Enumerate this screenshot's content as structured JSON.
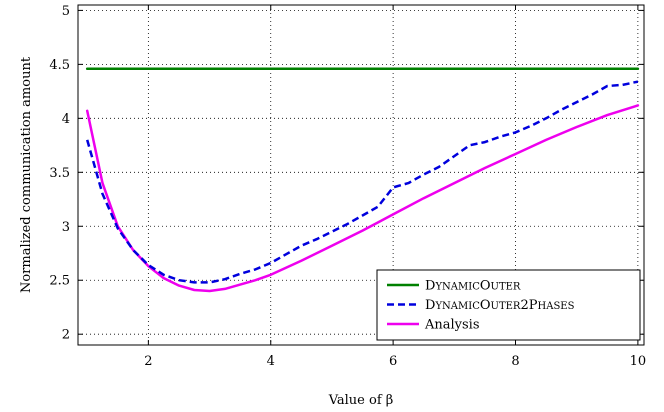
{
  "chart_data": {
    "type": "line",
    "xlabel": "Value of β",
    "ylabel": "Normalized communication amount",
    "xlim": [
      0.85,
      10.1
    ],
    "ylim": [
      1.9,
      5.05
    ],
    "xticks": [
      2,
      4,
      6,
      8,
      10
    ],
    "yticks": [
      2,
      2.5,
      3,
      3.5,
      4,
      4.5,
      5
    ],
    "xtick_labels": [
      "2",
      "4",
      "6",
      "8",
      "10"
    ],
    "ytick_labels": [
      "2",
      "2.5",
      "3",
      "3.5",
      "4",
      "4.5",
      "5"
    ],
    "grid": true,
    "legend_position": "bottom-right",
    "series": [
      {
        "name": "DynamicOuter",
        "color": "#008000",
        "style": "solid",
        "x": [
          1,
          10
        ],
        "y": [
          4.46,
          4.46
        ]
      },
      {
        "name": "DynamicOuter2Phases",
        "color": "#0000dd",
        "style": "dashed",
        "x": [
          1,
          1.25,
          1.5,
          1.75,
          2,
          2.25,
          2.5,
          2.75,
          3,
          3.25,
          3.5,
          3.75,
          4,
          4.25,
          4.5,
          4.75,
          5,
          5.25,
          5.5,
          5.75,
          6,
          6.25,
          6.5,
          6.75,
          7,
          7.25,
          7.5,
          7.75,
          8,
          8.25,
          8.5,
          8.75,
          9,
          9.25,
          9.5,
          9.75,
          10
        ],
        "y": [
          3.8,
          3.3,
          2.98,
          2.78,
          2.64,
          2.55,
          2.5,
          2.48,
          2.48,
          2.51,
          2.56,
          2.6,
          2.66,
          2.74,
          2.82,
          2.88,
          2.95,
          3.02,
          3.1,
          3.18,
          3.36,
          3.4,
          3.48,
          3.55,
          3.65,
          3.75,
          3.78,
          3.83,
          3.87,
          3.93,
          4.0,
          4.08,
          4.15,
          4.22,
          4.3,
          4.31,
          4.34
        ]
      },
      {
        "name": "Analysis",
        "color": "#ee00ee",
        "style": "solid",
        "x": [
          1,
          1.25,
          1.5,
          1.75,
          2,
          2.25,
          2.5,
          2.75,
          3,
          3.25,
          3.5,
          3.75,
          4,
          4.5,
          5,
          5.5,
          6,
          6.5,
          7,
          7.5,
          8,
          8.5,
          9,
          9.5,
          10
        ],
        "y": [
          4.07,
          3.4,
          3.0,
          2.78,
          2.63,
          2.52,
          2.45,
          2.41,
          2.4,
          2.42,
          2.46,
          2.5,
          2.55,
          2.68,
          2.82,
          2.96,
          3.11,
          3.26,
          3.4,
          3.54,
          3.67,
          3.8,
          3.92,
          4.03,
          4.12
        ]
      }
    ],
    "legend": [
      {
        "label_main": "DynamicOuter",
        "series": 0
      },
      {
        "label_main": "DynamicOuter2Phases",
        "series": 1
      },
      {
        "label_main": "Analysis",
        "series": 2
      }
    ]
  }
}
